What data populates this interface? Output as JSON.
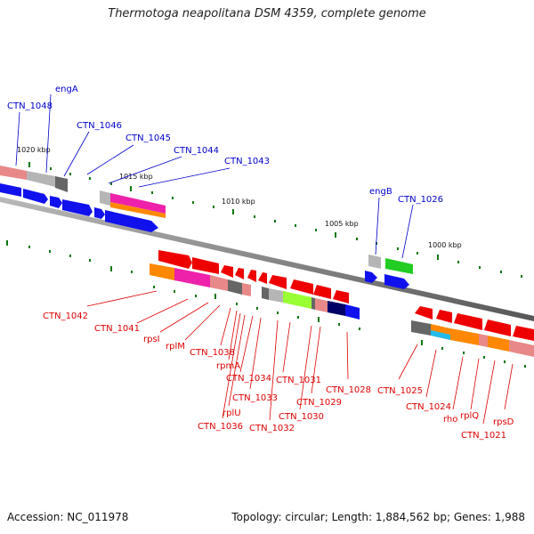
{
  "title": "Thermotoga neapolitana DSM 4359, complete genome",
  "footer": {
    "accession": "Accession: NC_011978",
    "summary": "Topology: circular; Length: 1,884,562 bp; Genes: 1,988"
  },
  "scale_labels": [
    "1020 kbp",
    "1015 kbp",
    "1010 kbp",
    "1005 kbp",
    "1000 kbp"
  ],
  "upper_genes": [
    "CTN_1048",
    "engA",
    "CTN_1046",
    "CTN_1045",
    "CTN_1044",
    "CTN_1043",
    "engB",
    "CTN_1026"
  ],
  "lower_genes": [
    "CTN_1042",
    "CTN_1041",
    "rpsI",
    "rplM",
    "CTN_1038",
    "rpmA",
    "CTN_1036",
    "rplU",
    "CTN_1034",
    "CTN_1033",
    "CTN_1032",
    "CTN_1031",
    "CTN_1030",
    "CTN_1029",
    "CTN_1028",
    "CTN_1025",
    "CTN_1024",
    "rho",
    "rplQ",
    "CTN_1021",
    "rpsD"
  ],
  "colors": {
    "upper_label": "#0000cc",
    "lower_label": "#dd0000",
    "tick": "#117711",
    "backbone": "#777777"
  }
}
